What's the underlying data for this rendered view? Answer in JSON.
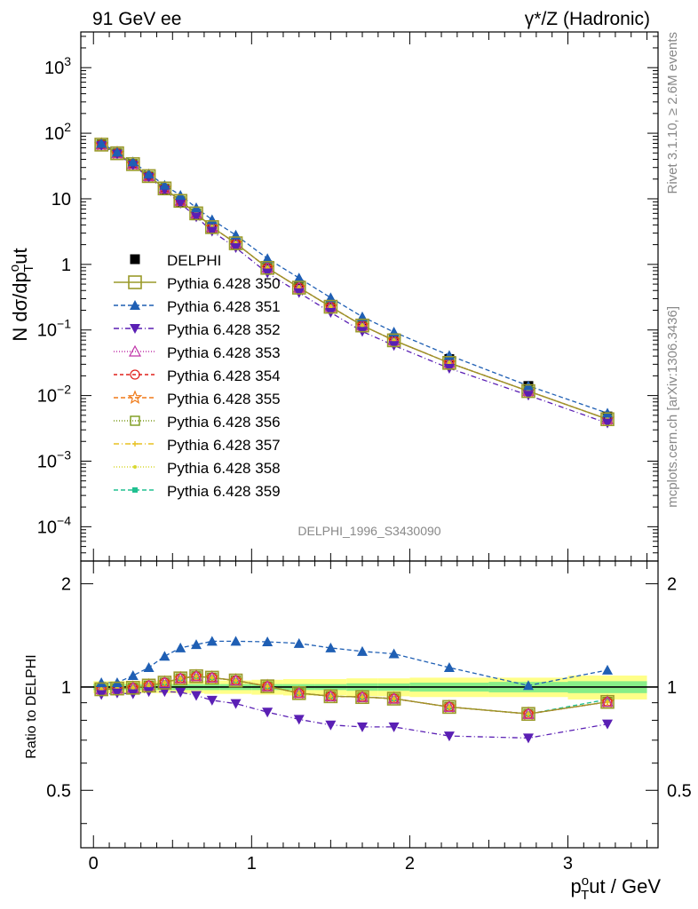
{
  "header": {
    "left": "91 GeV ee",
    "right": "γ*/Z (Hadronic)"
  },
  "side_labels": {
    "rivet": "Rivet 3.1.10, ≥ 2.6M events",
    "mcplots": "mcplots.cern.ch [arXiv:1306.3436]"
  },
  "watermark": "DELPHI_1996_S3430090",
  "chart_data": [
    {
      "type": "scatter",
      "panel": "main",
      "ylabel": "N dσ/dp_T^out",
      "yscale": "log",
      "ylim": [
        3e-05,
        3500
      ],
      "xlim": [
        -0.08,
        3.57
      ],
      "ytick_labels": [
        "10⁻⁴",
        "10⁻³",
        "10⁻²",
        "10⁻¹",
        "1",
        "10",
        "10²",
        "10³"
      ],
      "x": [
        0.05,
        0.15,
        0.25,
        0.35,
        0.45,
        0.55,
        0.65,
        0.75,
        0.9,
        1.1,
        1.3,
        1.5,
        1.7,
        1.9,
        2.25,
        2.75,
        3.25
      ],
      "reference": {
        "name": "DELPHI",
        "values": [
          68,
          50,
          34,
          22,
          14,
          8.8,
          5.6,
          3.5,
          2.0,
          0.88,
          0.46,
          0.24,
          0.125,
          0.075,
          0.036,
          0.014,
          0.0048
        ]
      },
      "series": [
        {
          "name": "Pythia 6.428 350",
          "values": [
            67,
            49.5,
            33.8,
            22.2,
            14.4,
            9.3,
            6.0,
            3.7,
            2.1,
            0.885,
            0.442,
            0.226,
            0.117,
            0.0695,
            0.0315,
            0.0117,
            0.00436
          ]
        },
        {
          "name": "Pythia 6.428 351",
          "values": [
            70,
            51.5,
            36.7,
            24.0,
            16.1,
            11.3,
            7.3,
            4.8,
            2.8,
            1.23,
            0.62,
            0.31,
            0.159,
            0.093,
            0.041,
            0.0141,
            0.0054
          ]
        },
        {
          "name": "Pythia 6.428 352",
          "values": [
            64.5,
            48.0,
            32.5,
            21.3,
            13.6,
            8.5,
            5.3,
            3.2,
            1.8,
            0.74,
            0.37,
            0.185,
            0.095,
            0.058,
            0.026,
            0.0101,
            0.0038
          ]
        },
        {
          "name": "Pythia 6.428 353",
          "values": [
            67,
            49.5,
            33.8,
            22.2,
            14.4,
            9.3,
            6.0,
            3.7,
            2.1,
            0.885,
            0.442,
            0.226,
            0.117,
            0.0695,
            0.0315,
            0.0117,
            0.00436
          ]
        },
        {
          "name": "Pythia 6.428 354",
          "values": [
            67,
            49.5,
            33.8,
            22.2,
            14.4,
            9.3,
            6.0,
            3.7,
            2.1,
            0.885,
            0.442,
            0.226,
            0.117,
            0.0695,
            0.0315,
            0.0117,
            0.00436
          ]
        },
        {
          "name": "Pythia 6.428 355",
          "values": [
            67,
            49.5,
            33.8,
            22.2,
            14.4,
            9.3,
            6.0,
            3.7,
            2.1,
            0.885,
            0.442,
            0.226,
            0.117,
            0.0695,
            0.0315,
            0.0117,
            0.00436
          ]
        },
        {
          "name": "Pythia 6.428 356",
          "values": [
            67,
            49.5,
            33.8,
            22.2,
            14.4,
            9.3,
            6.0,
            3.7,
            2.1,
            0.885,
            0.442,
            0.226,
            0.117,
            0.0695,
            0.0315,
            0.0117,
            0.00436
          ]
        },
        {
          "name": "Pythia 6.428 357",
          "values": [
            67,
            49.5,
            33.8,
            22.2,
            14.4,
            9.3,
            6.0,
            3.7,
            2.1,
            0.885,
            0.442,
            0.226,
            0.117,
            0.0695,
            0.0315,
            0.0117,
            0.00436
          ]
        },
        {
          "name": "Pythia 6.428 358",
          "values": [
            67,
            49.5,
            33.8,
            22.2,
            14.4,
            9.3,
            6.0,
            3.7,
            2.1,
            0.885,
            0.442,
            0.226,
            0.117,
            0.0695,
            0.0315,
            0.0117,
            0.00436
          ]
        },
        {
          "name": "Pythia 6.428 359",
          "values": [
            67,
            49.5,
            33.8,
            22.2,
            14.4,
            9.3,
            6.0,
            3.7,
            2.1,
            0.885,
            0.442,
            0.226,
            0.117,
            0.0695,
            0.0315,
            0.0117,
            0.00436
          ]
        }
      ],
      "legend": "left-center",
      "grid": false
    },
    {
      "type": "line",
      "panel": "ratio",
      "ylabel": "Ratio to DELPHI",
      "xlabel": "p_T^out / GeV",
      "ylim": [
        0.34,
        2.33
      ],
      "xlim": [
        -0.08,
        3.57
      ],
      "xtick_labels": [
        "0",
        "1",
        "2",
        "3"
      ],
      "ytick_labels": [
        "0.5",
        "1",
        "2"
      ],
      "x": [
        0.05,
        0.15,
        0.25,
        0.35,
        0.45,
        0.55,
        0.65,
        0.75,
        0.9,
        1.1,
        1.3,
        1.5,
        1.7,
        1.9,
        2.25,
        2.75,
        3.25
      ],
      "bands": {
        "edges": [
          0.0,
          0.1,
          0.2,
          0.3,
          0.4,
          0.5,
          0.6,
          0.7,
          0.8,
          1.0,
          1.2,
          1.4,
          1.6,
          1.8,
          2.0,
          2.5,
          3.0,
          3.5
        ],
        "stat_half": [
          0.02,
          0.02,
          0.02,
          0.02,
          0.02,
          0.02,
          0.02,
          0.02,
          0.02,
          0.02,
          0.02,
          0.02,
          0.025,
          0.025,
          0.03,
          0.035,
          0.04
        ],
        "total_half": [
          0.04,
          0.04,
          0.04,
          0.04,
          0.04,
          0.04,
          0.04,
          0.045,
          0.045,
          0.05,
          0.055,
          0.055,
          0.06,
          0.06,
          0.065,
          0.065,
          0.08
        ]
      },
      "series": [
        {
          "name": "Pythia 6.428 350",
          "values": [
            0.985,
            0.99,
            0.995,
            1.01,
            1.03,
            1.06,
            1.075,
            1.065,
            1.045,
            1.005,
            0.96,
            0.94,
            0.935,
            0.925,
            0.875,
            0.835,
            0.905
          ]
        },
        {
          "name": "Pythia 6.428 351",
          "values": [
            1.03,
            1.03,
            1.08,
            1.14,
            1.23,
            1.3,
            1.33,
            1.36,
            1.36,
            1.355,
            1.34,
            1.3,
            1.27,
            1.25,
            1.14,
            1.01,
            1.12
          ]
        },
        {
          "name": "Pythia 6.428 352",
          "values": [
            0.95,
            0.96,
            0.955,
            0.97,
            0.97,
            0.965,
            0.945,
            0.915,
            0.895,
            0.845,
            0.805,
            0.775,
            0.765,
            0.765,
            0.72,
            0.71,
            0.78
          ]
        },
        {
          "name": "Pythia 6.428 353",
          "values": [
            0.985,
            0.99,
            0.995,
            1.01,
            1.03,
            1.06,
            1.075,
            1.065,
            1.045,
            1.005,
            0.96,
            0.94,
            0.935,
            0.925,
            0.875,
            0.835,
            0.905
          ]
        },
        {
          "name": "Pythia 6.428 354",
          "values": [
            0.985,
            0.99,
            0.995,
            1.01,
            1.03,
            1.06,
            1.075,
            1.065,
            1.045,
            1.005,
            0.96,
            0.94,
            0.935,
            0.925,
            0.875,
            0.835,
            0.905
          ]
        },
        {
          "name": "Pythia 6.428 355",
          "values": [
            0.985,
            0.99,
            0.995,
            1.01,
            1.03,
            1.06,
            1.075,
            1.065,
            1.045,
            1.005,
            0.96,
            0.94,
            0.935,
            0.925,
            0.875,
            0.835,
            0.905
          ]
        },
        {
          "name": "Pythia 6.428 356",
          "values": [
            0.985,
            0.99,
            0.995,
            1.01,
            1.03,
            1.06,
            1.075,
            1.065,
            1.045,
            1.005,
            0.96,
            0.94,
            0.935,
            0.925,
            0.875,
            0.835,
            0.905
          ]
        },
        {
          "name": "Pythia 6.428 357",
          "values": [
            0.985,
            0.99,
            0.995,
            1.01,
            1.03,
            1.06,
            1.075,
            1.065,
            1.045,
            1.005,
            0.96,
            0.94,
            0.935,
            0.925,
            0.875,
            0.835,
            0.905
          ]
        },
        {
          "name": "Pythia 6.428 358",
          "values": [
            0.985,
            0.99,
            0.995,
            1.01,
            1.03,
            1.06,
            1.075,
            1.065,
            1.045,
            1.005,
            0.96,
            0.94,
            0.935,
            0.925,
            0.875,
            0.835,
            0.905
          ]
        },
        {
          "name": "Pythia 6.428 359",
          "values": [
            0.985,
            0.99,
            0.995,
            1.01,
            1.03,
            1.06,
            1.075,
            1.065,
            1.045,
            1.005,
            0.96,
            0.94,
            0.935,
            0.925,
            0.875,
            0.835,
            0.92
          ]
        }
      ]
    }
  ],
  "styles": {
    "DELPHI": {
      "color": "#000000",
      "marker": "filled-square",
      "dash": ""
    },
    "Pythia 6.428 350": {
      "color": "#9a9a2a",
      "marker": "open-square-large",
      "dash": ""
    },
    "Pythia 6.428 351": {
      "color": "#1f5fb4",
      "marker": "filled-triangle-up",
      "dash": "5,3"
    },
    "Pythia 6.428 352": {
      "color": "#5a1fb4",
      "marker": "filled-triangle-down",
      "dash": "6,3,1,3"
    },
    "Pythia 6.428 353": {
      "color": "#c033a8",
      "marker": "open-triangle-up",
      "dash": "1,2"
    },
    "Pythia 6.428 354": {
      "color": "#e0201c",
      "marker": "open-circle",
      "dash": "4,3"
    },
    "Pythia 6.428 355": {
      "color": "#f07a18",
      "marker": "open-star",
      "dash": "5,3"
    },
    "Pythia 6.428 356": {
      "color": "#7a9a1a",
      "marker": "open-square",
      "dash": "1,2"
    },
    "Pythia 6.428 357": {
      "color": "#e8c020",
      "marker": "small-plus",
      "dash": "6,3,1,3"
    },
    "Pythia 6.428 358": {
      "color": "#d8d830",
      "marker": "small-dot",
      "dash": "1,2"
    },
    "Pythia 6.428 359": {
      "color": "#20c090",
      "marker": "small-filled-square",
      "dash": "5,3"
    },
    "band_total": "#ffff88",
    "band_stat": "#88ee88"
  }
}
